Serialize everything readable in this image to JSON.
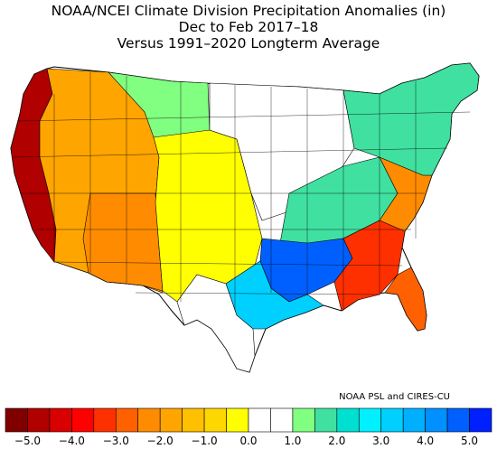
{
  "title": {
    "line1": "NOAA/NCEI Climate Division Precipitation Anomalies (in)",
    "line2": "Dec to Feb 2017–18",
    "line3": "Versus 1991–2020 Longterm Average"
  },
  "credit": "NOAA PSL and CIRES-CU",
  "legend": {
    "colors": [
      "#800000",
      "#b00000",
      "#d80000",
      "#ff0000",
      "#ff3000",
      "#ff6000",
      "#ff8c00",
      "#ffa500",
      "#ffc000",
      "#ffd700",
      "#ffff00",
      "#ffffff",
      "#ffffff",
      "#80ff80",
      "#40e0a0",
      "#00e0d0",
      "#00f0ff",
      "#00d0ff",
      "#00b0ff",
      "#0090ff",
      "#0060ff",
      "#0020ff"
    ],
    "ticks": [
      {
        "label": "−5.0",
        "value": -5.0
      },
      {
        "label": "−4.0",
        "value": -4.0
      },
      {
        "label": "−3.0",
        "value": -3.0
      },
      {
        "label": "−2.0",
        "value": -2.0
      },
      {
        "label": "−1.0",
        "value": -1.0
      },
      {
        "label": "0.0",
        "value": 0.0
      },
      {
        "label": "1.0",
        "value": 1.0
      },
      {
        "label": "2.0",
        "value": 2.0
      },
      {
        "label": "3.0",
        "value": 3.0
      },
      {
        "label": "4.0",
        "value": 4.0
      },
      {
        "label": "5.0",
        "value": 5.0
      }
    ],
    "range": [
      -5.5,
      5.5
    ]
  },
  "map_colors": {
    "pacific_coast": "#b00000",
    "west": "#ffa500",
    "southwest": "#ff8c00",
    "plains": "#ffff00",
    "north_plains": "#80ff80",
    "midwest": "#ffffff",
    "ohio_valley": "#40e0a0",
    "lower_mississippi": "#0060ff",
    "gulf": "#00d0ff",
    "southeast": "#ff3000",
    "atlantic": "#ff8c00",
    "florida": "#ff6000",
    "northeast": "#40e0a0",
    "texas_south": "#ffffff"
  }
}
